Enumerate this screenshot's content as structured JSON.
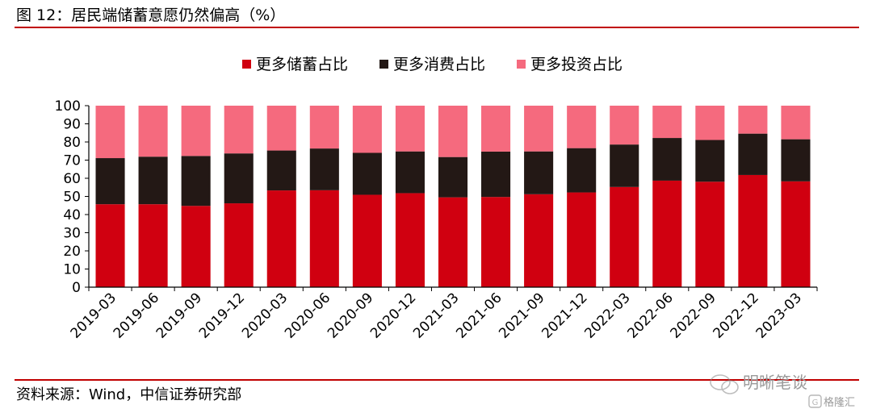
{
  "figure_title": "图 12：居民端储蓄意愿仍然偏高（%）",
  "source": "资料来源：Wind，中信证券研究部",
  "watermark": {
    "text1": "明晰笔谈",
    "text2": "格隆汇"
  },
  "colors": {
    "savings": "#d00010",
    "consumption": "#231815",
    "investment": "#f56a7e",
    "rule": "#c00000"
  },
  "chart_data": {
    "type": "bar",
    "stacked": true,
    "categories": [
      "2019-03",
      "2019-06",
      "2019-09",
      "2019-12",
      "2020-03",
      "2020-06",
      "2020-09",
      "2020-12",
      "2021-03",
      "2021-06",
      "2021-09",
      "2021-12",
      "2022-03",
      "2022-06",
      "2022-09",
      "2022-12",
      "2023-03"
    ],
    "series": [
      {
        "name": "更多储蓄占比",
        "color": "#d00010",
        "values": [
          45.7,
          45.7,
          44.8,
          46.2,
          53.3,
          53.4,
          50.9,
          51.8,
          49.5,
          49.7,
          51.2,
          52.2,
          55.2,
          58.7,
          58.1,
          61.8,
          58.3
        ]
      },
      {
        "name": "更多消费占比",
        "color": "#231815",
        "values": [
          25.4,
          26.2,
          27.5,
          27.5,
          22.0,
          23.0,
          23.1,
          23.0,
          22.2,
          25.0,
          23.6,
          24.4,
          23.4,
          23.5,
          23.0,
          22.8,
          23.2
        ]
      },
      {
        "name": "更多投资占比",
        "color": "#f56a7e",
        "values": [
          28.9,
          28.1,
          27.7,
          26.3,
          24.7,
          23.6,
          26.0,
          25.2,
          28.3,
          25.3,
          25.2,
          23.4,
          21.4,
          17.8,
          18.9,
          15.4,
          18.5
        ]
      }
    ],
    "ylim": [
      0,
      100
    ],
    "yticks": [
      0,
      10,
      20,
      30,
      40,
      50,
      60,
      70,
      80,
      90,
      100
    ],
    "legend_position": "top-center",
    "grid": false
  }
}
